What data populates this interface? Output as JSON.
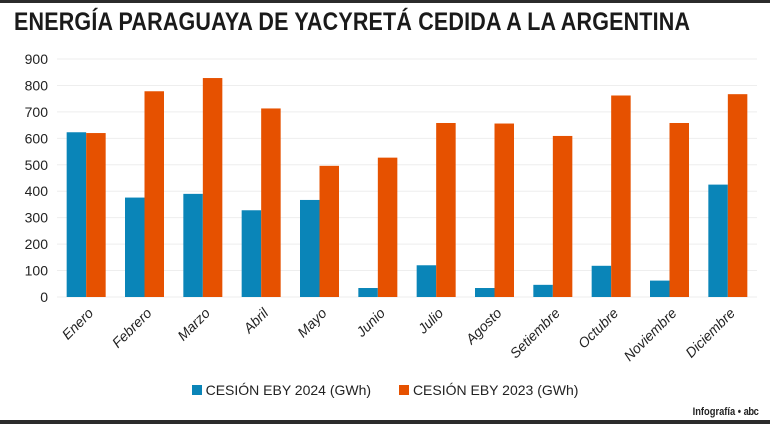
{
  "header": {
    "title": "ENERGÍA PARAGUAYA DE YACYRETÁ CEDIDA A LA ARGENTINA"
  },
  "footer": {
    "credit_label": "Infografía",
    "credit_separator": "•",
    "credit_logo": "abc"
  },
  "chart_data": {
    "type": "bar",
    "title": "ENERGÍA PARAGUAYA DE YACYRETÁ CEDIDA A LA ARGENTINA",
    "xlabel": "",
    "ylabel": "",
    "ylim": [
      0,
      900
    ],
    "yticks": [
      0,
      100,
      200,
      300,
      400,
      500,
      600,
      700,
      800,
      900
    ],
    "grid": true,
    "legend_position": "bottom-center",
    "categories": [
      "Enero",
      "Febrero",
      "Marzo",
      "Abril",
      "Mayo",
      "Junio",
      "Julio",
      "Agosto",
      "Setiembre",
      "Octubre",
      "Noviembre",
      "Diciembre"
    ],
    "series": [
      {
        "name": "CESIÓN  EBY  2024 (GWh)",
        "color": "#0a85b8",
        "values": [
          623,
          376,
          390,
          328,
          367,
          34,
          120,
          34,
          46,
          118,
          62,
          425
        ]
      },
      {
        "name": "CESIÓN  EBY 2023 (GWh)",
        "color": "#e65100",
        "values": [
          620,
          778,
          828,
          713,
          496,
          527,
          658,
          656,
          609,
          762,
          658,
          767
        ]
      }
    ]
  }
}
